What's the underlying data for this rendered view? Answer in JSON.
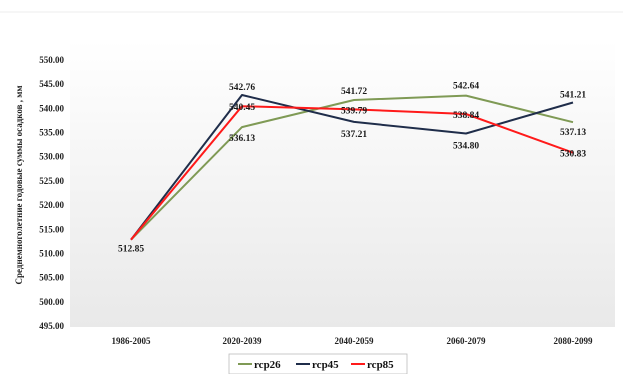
{
  "chart_data": {
    "type": "line",
    "title": "",
    "xlabel": "",
    "ylabel": "Среднемноголетние годовые суммы осадков , мм",
    "categories": [
      "1986-2005",
      "2020-2039",
      "2040-2059",
      "2060-2079",
      "2080-2099"
    ],
    "ylim": [
      495,
      550
    ],
    "ytick_step": 5,
    "ytick_labels": [
      "495.00",
      "500.00",
      "505.00",
      "510.00",
      "515.00",
      "520.00",
      "525.00",
      "530.00",
      "535.00",
      "540.00",
      "545.00",
      "550.00"
    ],
    "grid": false,
    "legend_position": "bottom",
    "series": [
      {
        "name": "rcp26",
        "color": "#7f9a55",
        "values": [
          512.85,
          536.13,
          541.72,
          542.64,
          537.13
        ],
        "labels": [
          "512.85",
          "536.13",
          "541.72",
          "542.64",
          "537.13"
        ]
      },
      {
        "name": "rcp45",
        "color": "#1f2d4a",
        "values": [
          512.85,
          542.76,
          537.21,
          534.8,
          541.21
        ],
        "labels": [
          "",
          "542.76",
          "537.21",
          "534.80",
          "541.21"
        ]
      },
      {
        "name": "rcp85",
        "color": "#ff1a1a",
        "values": [
          512.85,
          540.45,
          539.79,
          538.84,
          530.83
        ],
        "labels": [
          "",
          "540.45",
          "539.79",
          "538.84",
          "530.83"
        ]
      }
    ]
  }
}
